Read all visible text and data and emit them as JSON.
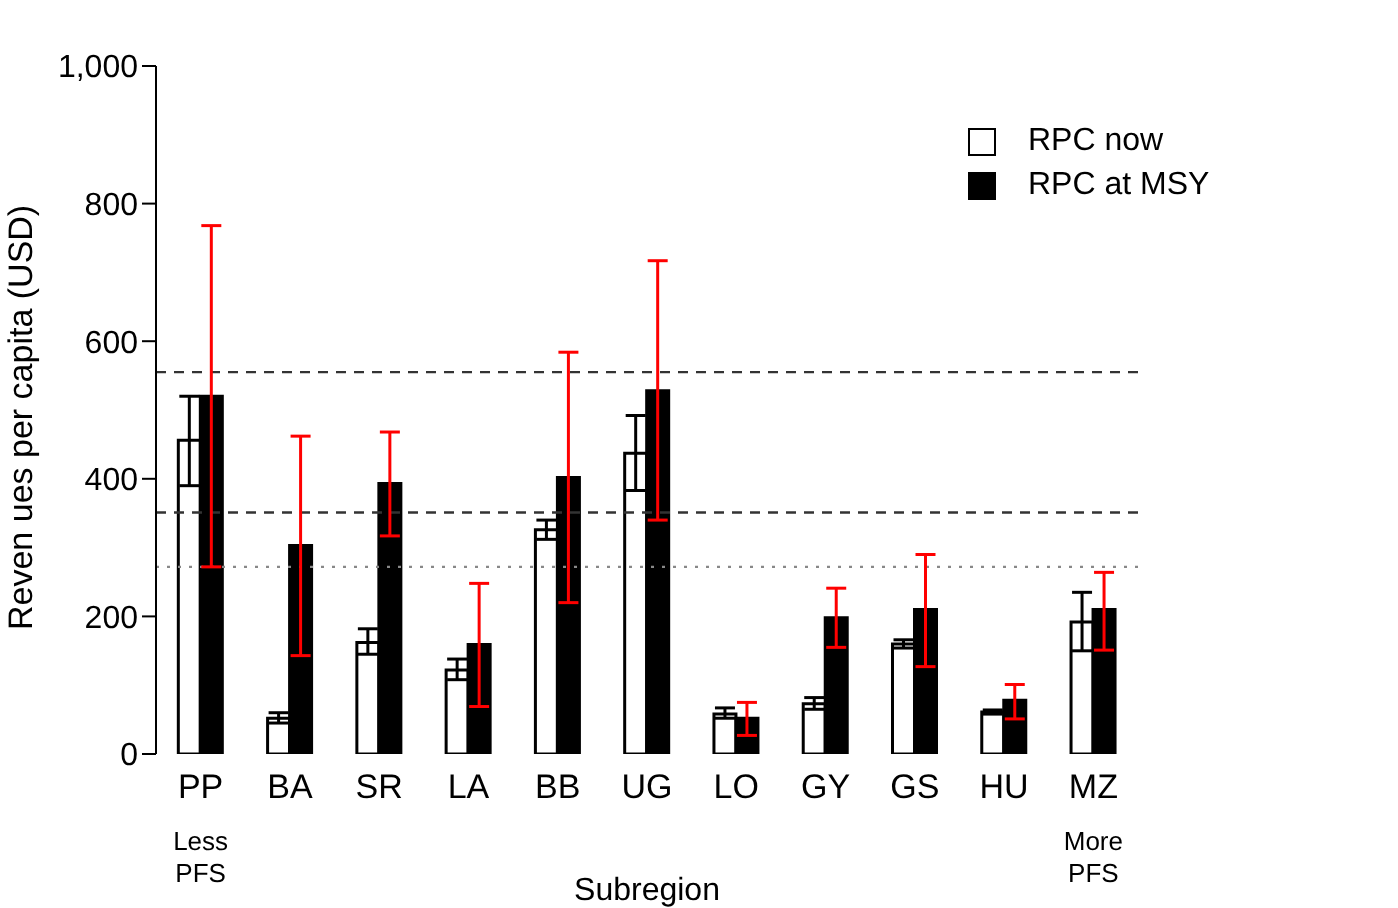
{
  "chart_data": {
    "type": "bar",
    "xlabel": "Subregion",
    "ylabel": "Reven ues per capita (USD)",
    "categories": [
      "PP",
      "BA",
      "SR",
      "LA",
      "BB",
      "UG",
      "LO",
      "GY",
      "GS",
      "HU",
      "MZ"
    ],
    "series": [
      {
        "name": "RPC now",
        "color": "#ffffff",
        "values": [
          456,
          52,
          162,
          122,
          326,
          437,
          58,
          73,
          160,
          61,
          192
        ],
        "errors": [
          [
            390,
            520
          ],
          [
            45,
            60
          ],
          [
            145,
            182
          ],
          [
            108,
            138
          ],
          [
            312,
            340
          ],
          [
            383,
            492
          ],
          [
            52,
            67
          ],
          [
            65,
            82
          ],
          [
            154,
            166
          ],
          [
            58,
            64
          ],
          [
            150,
            235
          ]
        ]
      },
      {
        "name": "RPC at MSY",
        "color": "#000000",
        "values": [
          520,
          303,
          393,
          159,
          402,
          528,
          52,
          198,
          210,
          78,
          210
        ],
        "errors": [
          [
            272,
            768
          ],
          [
            143,
            462
          ],
          [
            317,
            468
          ],
          [
            69,
            248
          ],
          [
            220,
            584
          ],
          [
            340,
            717
          ],
          [
            27,
            75
          ],
          [
            155,
            241
          ],
          [
            127,
            290
          ],
          [
            51,
            101
          ],
          [
            151,
            264
          ]
        ]
      }
    ],
    "ylim": [
      0,
      1000
    ],
    "yticks": [
      0,
      200,
      400,
      600,
      800,
      {
        "value": 1000,
        "label": "1,000"
      }
    ],
    "ref_lines": [
      {
        "axis": "y",
        "value": 555,
        "line_style": "dashed",
        "color": "#333333"
      },
      {
        "axis": "y",
        "value": 351,
        "line_style": "dashed",
        "color": "#333333"
      },
      {
        "axis": "y",
        "value": 272,
        "line_style": "dotted",
        "color": "#888888"
      }
    ],
    "annotations": [
      "Less\nPFS",
      "More\nPFS"
    ],
    "legend": "top right",
    "grid": false
  }
}
